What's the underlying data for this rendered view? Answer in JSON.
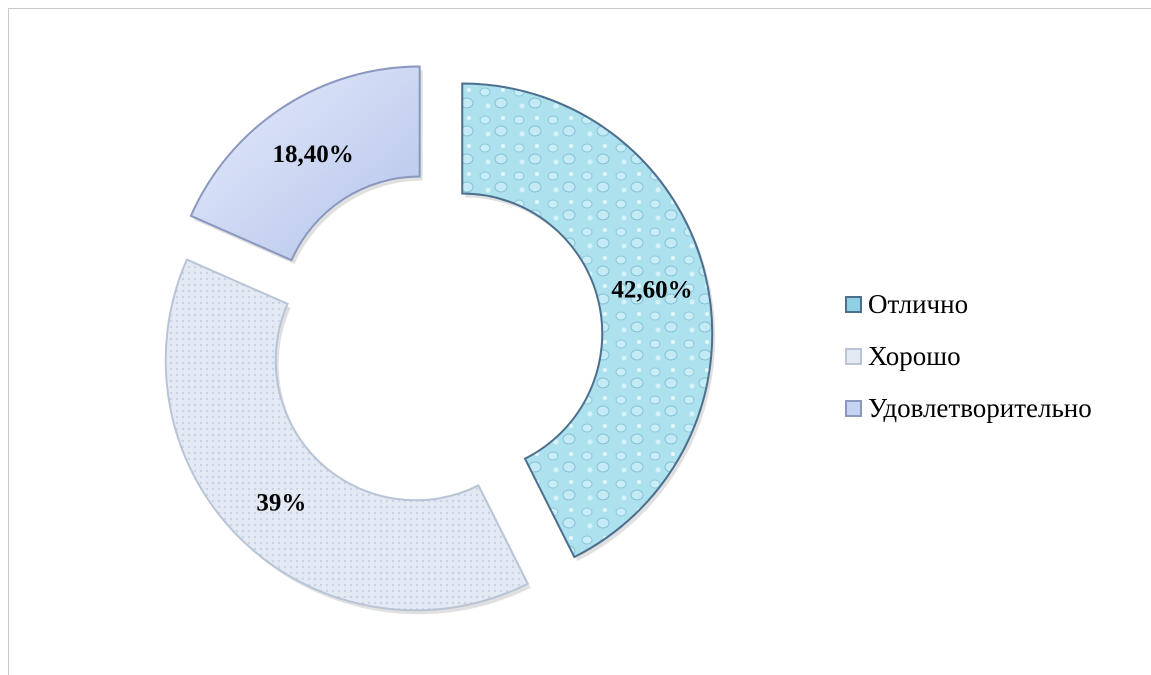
{
  "chart_data": {
    "type": "pie",
    "style": "exploded-donut",
    "categories": [
      "Отлично",
      "Хорошо",
      "Удовлетворительно"
    ],
    "values": [
      42.6,
      39.0,
      18.4
    ],
    "data_labels": [
      "42,60%",
      "39%",
      "18,40%"
    ],
    "colors": [
      "#a9dfec",
      "#dfe7f3",
      "#c5d2f0"
    ],
    "edge_colors": [
      "#4d6f8e",
      "#b9c4d6",
      "#8a98bf"
    ],
    "legend_position": "right",
    "title": ""
  }
}
